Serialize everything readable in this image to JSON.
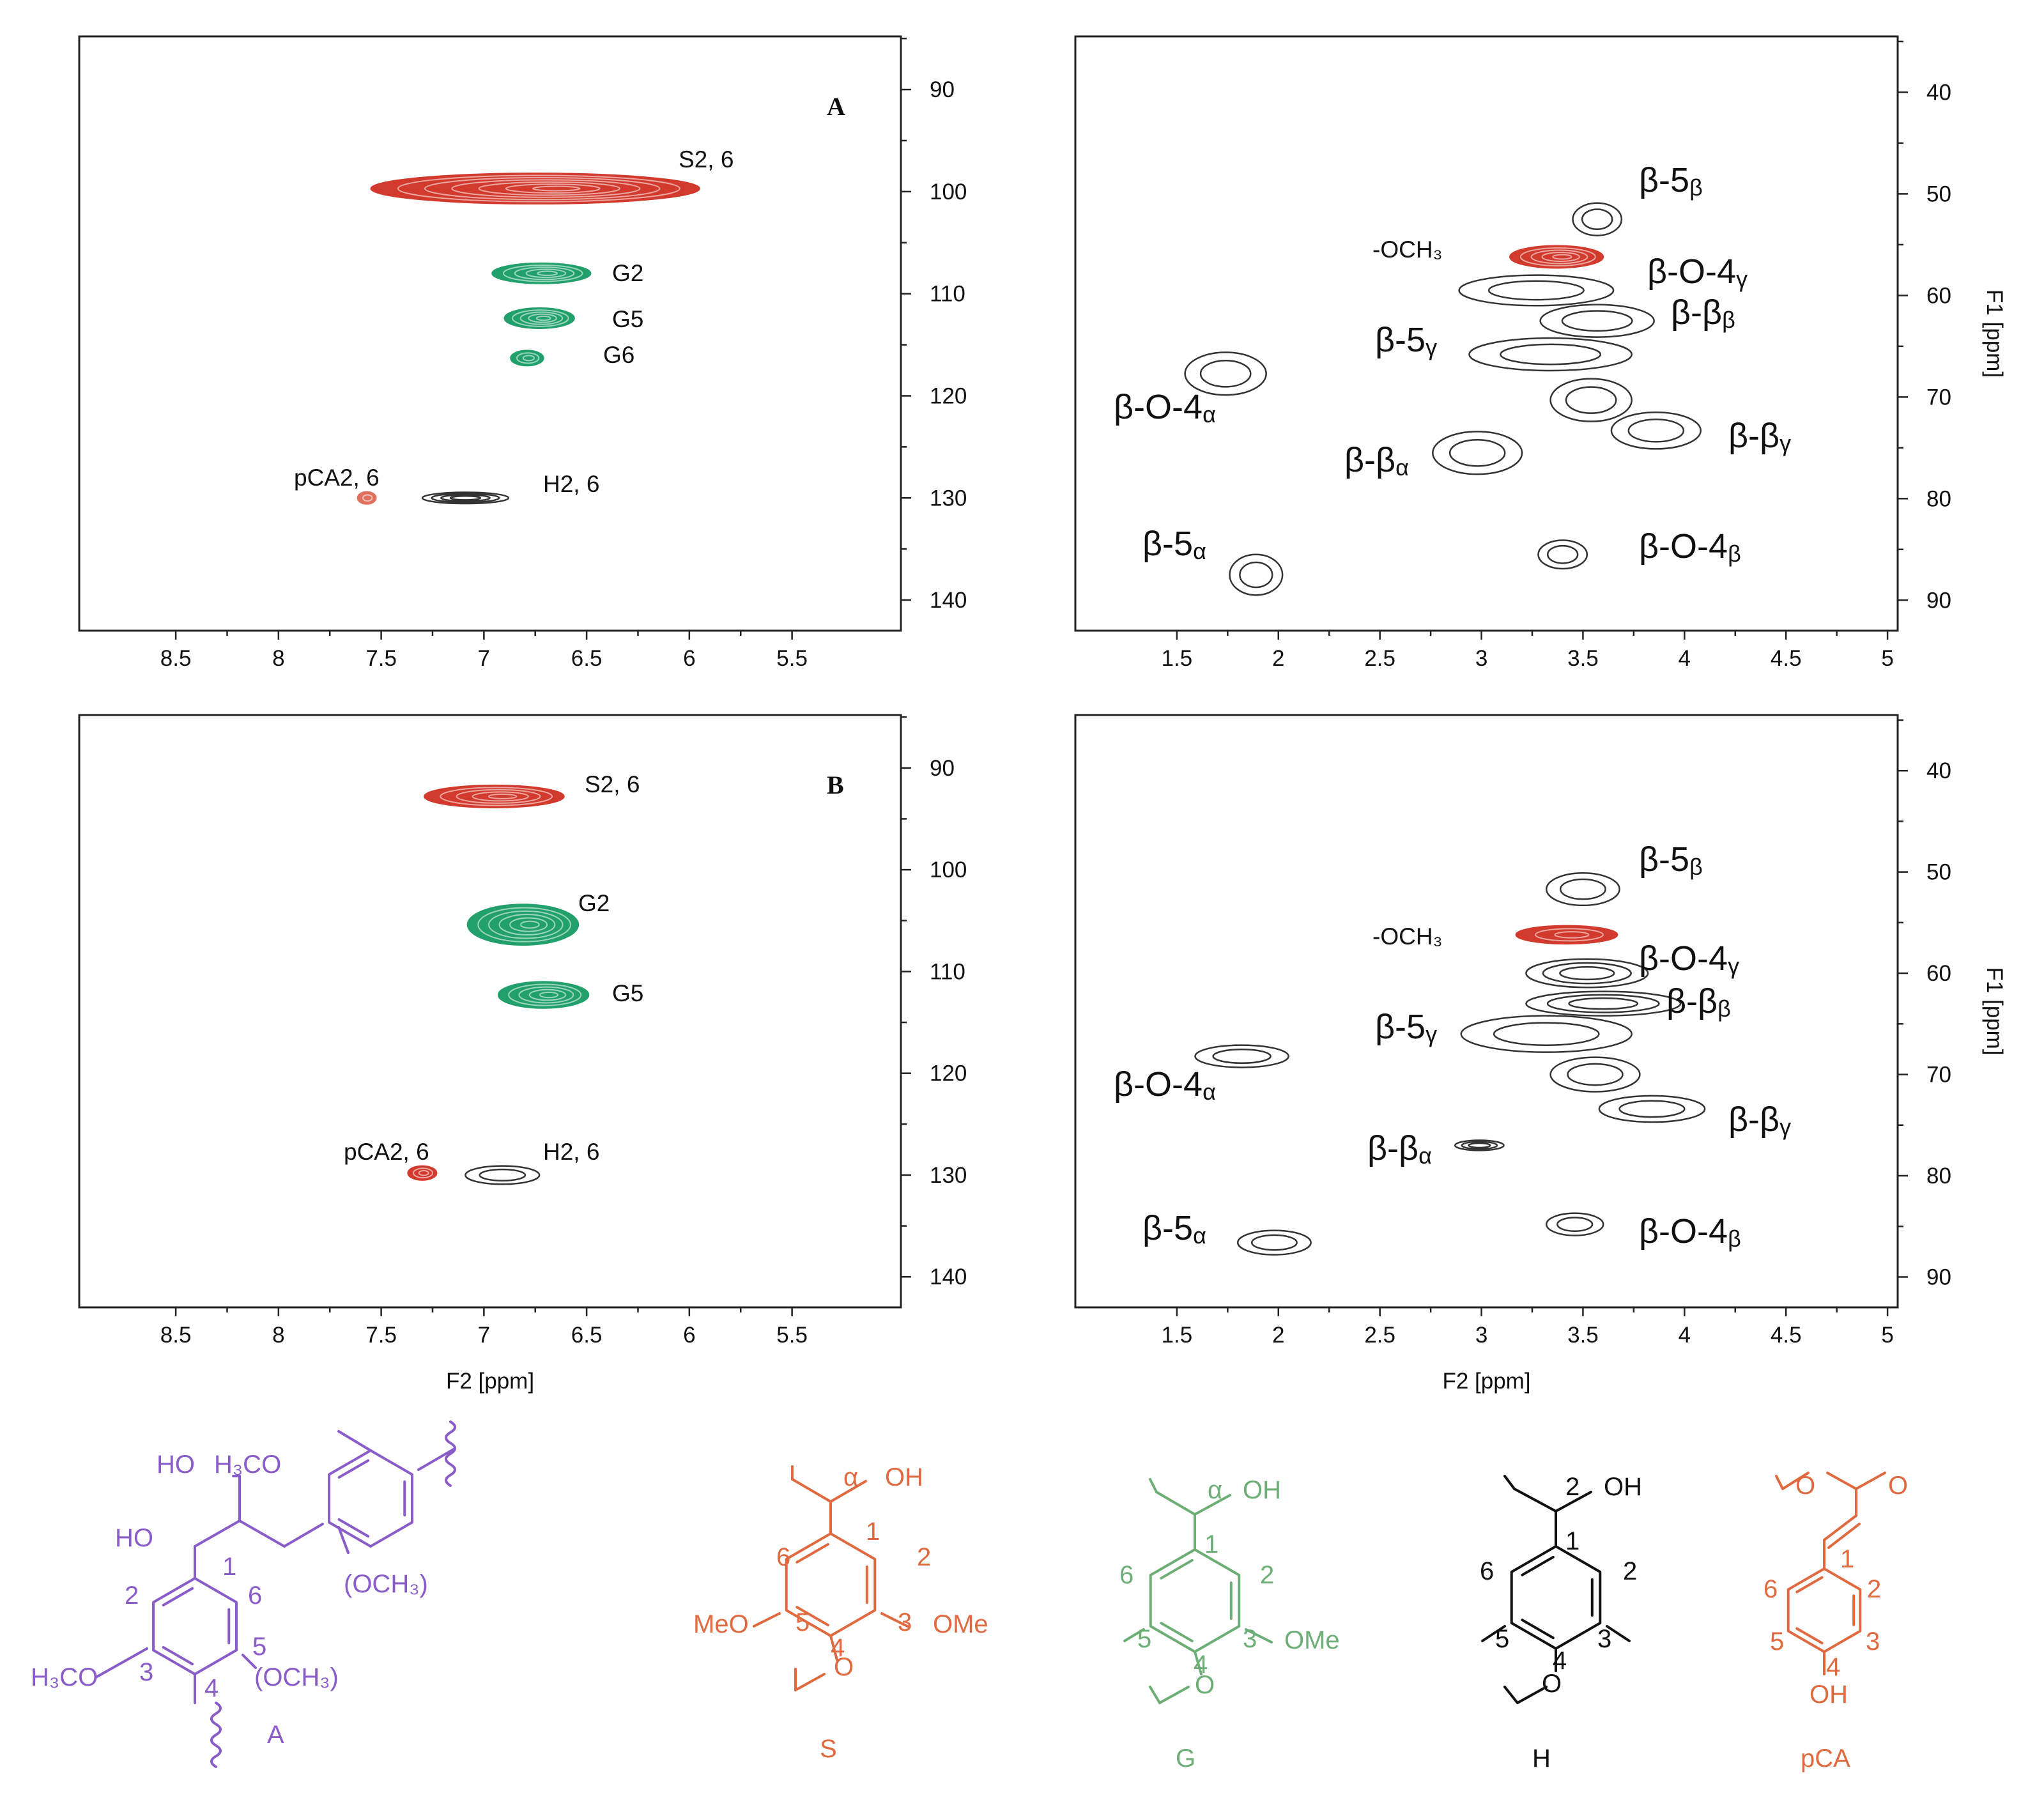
{
  "chart_data": [
    {
      "type": "scatter",
      "panel_label": "A",
      "region": "aromatic",
      "xlabel": "",
      "ylabel": "",
      "xlim": [
        8.97,
        4.97
      ],
      "ylim": [
        84.8,
        143.0
      ],
      "xticks": [
        "8.5",
        "8",
        "7.5",
        "7",
        "6.5",
        "6",
        "5.5"
      ],
      "yticks": [
        "90",
        "100",
        "110",
        "120",
        "130",
        "140"
      ],
      "peaks": [
        {
          "label": "S2,  6",
          "x": 6.75,
          "y": 99.7,
          "rx": 0.8,
          "ry": 1.5,
          "color": "#d23a2e",
          "filled": true,
          "n": 7
        },
        {
          "label": "G2",
          "x": 6.72,
          "y": 108.0,
          "rx": 0.24,
          "ry": 1.0,
          "color": "#22a06b",
          "filled": true,
          "n": 5
        },
        {
          "label": "G5",
          "x": 6.73,
          "y": 112.4,
          "rx": 0.17,
          "ry": 1.0,
          "color": "#22a06b",
          "filled": true,
          "n": 5
        },
        {
          "label": "G6",
          "x": 6.79,
          "y": 116.3,
          "rx": 0.08,
          "ry": 0.75,
          "color": "#22a06b",
          "filled": true,
          "n": 3
        },
        {
          "label": "pCA2,  6",
          "x": 7.57,
          "y": 130.0,
          "rx": 0.045,
          "ry": 0.6,
          "color": "#e0705f",
          "filled": true,
          "n": 2
        },
        {
          "label": "H2,  6",
          "x": 7.09,
          "y": 130.0,
          "rx": 0.21,
          "ry": 0.55,
          "color": "#333333",
          "filled": false,
          "n": 4
        }
      ]
    },
    {
      "type": "scatter",
      "panel_label": "",
      "region": "side-chain",
      "xlabel": "",
      "ylabel": "F1 [ppm]",
      "xlim": [
        1.0,
        5.05
      ],
      "ylim": [
        34.5,
        93.0
      ],
      "xticks": [
        "1.5",
        "2",
        "2.5",
        "3",
        "3.5",
        "4",
        "4.5",
        "5"
      ],
      "yticks": [
        "40",
        "50",
        "60",
        "70",
        "80",
        "90"
      ],
      "peaks": [
        {
          "label": "β-5β",
          "x": 3.57,
          "y": 52.5,
          "rx": 0.12,
          "ry": 1.6,
          "color": "#333333",
          "filled": false,
          "n": 2
        },
        {
          "label": "-OCH₃",
          "x": 3.37,
          "y": 56.2,
          "rx": 0.23,
          "ry": 1.1,
          "color": "#d23a2e",
          "filled": true,
          "n": 5
        },
        {
          "label": "β-O-4γ",
          "x": 3.27,
          "y": 59.5,
          "rx": 0.38,
          "ry": 1.5,
          "color": "#333333",
          "filled": false,
          "n": 2
        },
        {
          "label": "β-ββ",
          "x": 3.57,
          "y": 62.5,
          "rx": 0.28,
          "ry": 1.6,
          "color": "#333333",
          "filled": false,
          "n": 2
        },
        {
          "label": "β-5γ",
          "x": 3.34,
          "y": 65.8,
          "rx": 0.4,
          "ry": 1.6,
          "color": "#333333",
          "filled": false,
          "n": 2
        },
        {
          "label": "β-O-4α",
          "x": 1.74,
          "y": 67.7,
          "rx": 0.2,
          "ry": 2.1,
          "color": "#333333",
          "filled": false,
          "n": 2
        },
        {
          "label": "β-βα",
          "x": 2.98,
          "y": 75.5,
          "rx": 0.22,
          "ry": 2.1,
          "color": "#333333",
          "filled": false,
          "n": 2
        },
        {
          "label": "",
          "x": 3.54,
          "y": 70.3,
          "rx": 0.2,
          "ry": 2.1,
          "color": "#333333",
          "filled": false,
          "n": 2
        },
        {
          "label": "β-βγ",
          "x": 3.86,
          "y": 73.3,
          "rx": 0.22,
          "ry": 1.8,
          "color": "#333333",
          "filled": false,
          "n": 2
        },
        {
          "label": "β-5α",
          "x": 1.89,
          "y": 87.5,
          "rx": 0.13,
          "ry": 2.0,
          "color": "#333333",
          "filled": false,
          "n": 2
        },
        {
          "label": "β-O-4β",
          "x": 3.4,
          "y": 85.5,
          "rx": 0.12,
          "ry": 1.4,
          "color": "#333333",
          "filled": false,
          "n": 2
        }
      ]
    },
    {
      "type": "scatter",
      "panel_label": "B",
      "region": "aromatic",
      "xlabel": "F2 [ppm]",
      "ylabel": "",
      "xlim": [
        8.97,
        4.97
      ],
      "ylim": [
        84.8,
        143.0
      ],
      "xticks": [
        "8.5",
        "8",
        "7.5",
        "7",
        "6.5",
        "6",
        "5.5"
      ],
      "yticks": [
        "90",
        "100",
        "110",
        "120",
        "130",
        "140"
      ],
      "peaks": [
        {
          "label": "S2,  6",
          "x": 6.95,
          "y": 92.8,
          "rx": 0.34,
          "ry": 1.1,
          "color": "#d23a2e",
          "filled": true,
          "n": 5
        },
        {
          "label": "G2",
          "x": 6.81,
          "y": 105.4,
          "rx": 0.27,
          "ry": 2.0,
          "color": "#22a06b",
          "filled": true,
          "n": 6
        },
        {
          "label": "G5",
          "x": 6.71,
          "y": 112.3,
          "rx": 0.22,
          "ry": 1.3,
          "color": "#22a06b",
          "filled": true,
          "n": 5
        },
        {
          "label": "pCA2,  6",
          "x": 7.3,
          "y": 129.8,
          "rx": 0.07,
          "ry": 0.7,
          "color": "#d23a2e",
          "filled": true,
          "n": 3
        },
        {
          "label": "H2,  6",
          "x": 6.91,
          "y": 130.0,
          "rx": 0.18,
          "ry": 0.9,
          "color": "#333333",
          "filled": false,
          "n": 2
        }
      ]
    },
    {
      "type": "scatter",
      "panel_label": "",
      "region": "side-chain",
      "xlabel": "F2 [ppm]",
      "ylabel": "F1 [ppm]",
      "xlim": [
        1.0,
        5.05
      ],
      "ylim": [
        34.5,
        93.0
      ],
      "xticks": [
        "1.5",
        "2",
        "2.5",
        "3",
        "3.5",
        "4",
        "4.5",
        "5"
      ],
      "yticks": [
        "40",
        "50",
        "60",
        "70",
        "80",
        "90"
      ],
      "peaks": [
        {
          "label": "β-5β",
          "x": 3.5,
          "y": 51.7,
          "rx": 0.18,
          "ry": 1.6,
          "color": "#333333",
          "filled": false,
          "n": 2
        },
        {
          "label": "-OCH₃",
          "x": 3.42,
          "y": 56.2,
          "rx": 0.25,
          "ry": 0.9,
          "color": "#d23a2e",
          "filled": true,
          "n": 3
        },
        {
          "label": "β-O-4γ",
          "x": 3.52,
          "y": 60.0,
          "rx": 0.3,
          "ry": 1.4,
          "color": "#333333",
          "filled": false,
          "n": 3
        },
        {
          "label": "β-ββ",
          "x": 3.6,
          "y": 63.0,
          "rx": 0.38,
          "ry": 1.2,
          "color": "#333333",
          "filled": false,
          "n": 3
        },
        {
          "label": "β-5γ",
          "x": 3.32,
          "y": 66.0,
          "rx": 0.42,
          "ry": 1.8,
          "color": "#333333",
          "filled": false,
          "n": 2
        },
        {
          "label": "β-O-4α",
          "x": 1.82,
          "y": 68.2,
          "rx": 0.23,
          "ry": 1.1,
          "color": "#333333",
          "filled": false,
          "n": 2
        },
        {
          "label": "",
          "x": 3.56,
          "y": 70.0,
          "rx": 0.22,
          "ry": 1.7,
          "color": "#333333",
          "filled": false,
          "n": 2
        },
        {
          "label": "β-βγ",
          "x": 3.84,
          "y": 73.4,
          "rx": 0.26,
          "ry": 1.3,
          "color": "#333333",
          "filled": false,
          "n": 2
        },
        {
          "label": "β-βα",
          "x": 2.99,
          "y": 77.0,
          "rx": 0.12,
          "ry": 0.5,
          "color": "#333333",
          "filled": false,
          "n": 3
        },
        {
          "label": "β-5α",
          "x": 1.98,
          "y": 86.6,
          "rx": 0.18,
          "ry": 1.2,
          "color": "#333333",
          "filled": false,
          "n": 2
        },
        {
          "label": "β-O-4β",
          "x": 3.46,
          "y": 84.8,
          "rx": 0.14,
          "ry": 1.1,
          "color": "#333333",
          "filled": false,
          "n": 2
        }
      ]
    }
  ],
  "structures": {
    "A": {
      "name": "A",
      "color": "#8a5cc8",
      "labels": [
        "HO",
        "H₃CO",
        "HO",
        "(OCH₃)",
        "1",
        "2",
        "6",
        "3",
        "4",
        "5",
        "H₃CO",
        "(OCH₃)",
        "A"
      ]
    },
    "S": {
      "name": "S",
      "color": "#e06a3f",
      "labels": [
        "α",
        "OH",
        "1",
        "2",
        "6",
        "3",
        "4",
        "5",
        "MeO",
        "OMe",
        "O"
      ]
    },
    "G": {
      "name": "G",
      "color": "#6cae76",
      "labels": [
        "α",
        "OH",
        "1",
        "2",
        "6",
        "3",
        "4",
        "5",
        "OMe",
        "O"
      ]
    },
    "H": {
      "name": "H",
      "color": "#111111",
      "labels": [
        "2",
        "OH",
        "1",
        "2",
        "6",
        "3",
        "4",
        "5",
        "O"
      ]
    },
    "pCA": {
      "name": "pCA",
      "color": "#e06a3f",
      "labels": [
        "O",
        "O",
        "1",
        "2",
        "6",
        "3",
        "4",
        "5",
        "OH"
      ]
    }
  }
}
